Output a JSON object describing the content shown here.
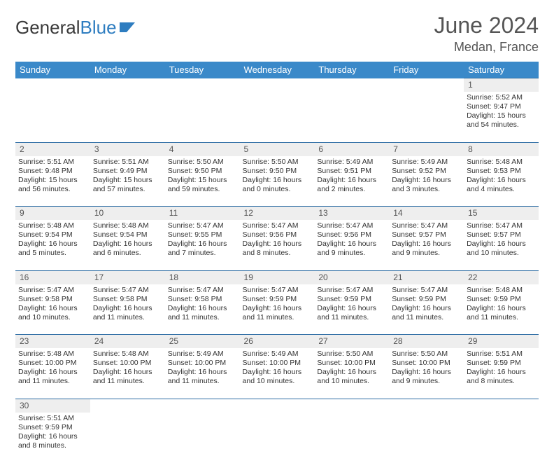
{
  "header": {
    "logo_text1": "General",
    "logo_text2": "Blue",
    "month_title": "June 2024",
    "location": "Medan, France"
  },
  "colors": {
    "header_bg": "#3a89c9",
    "header_text": "#ffffff",
    "daynum_bg": "#eeeeee",
    "divider": "#2e6da4"
  },
  "dayNames": [
    "Sunday",
    "Monday",
    "Tuesday",
    "Wednesday",
    "Thursday",
    "Friday",
    "Saturday"
  ],
  "weeks": [
    {
      "nums": [
        "",
        "",
        "",
        "",
        "",
        "",
        "1"
      ],
      "cells": [
        null,
        null,
        null,
        null,
        null,
        null,
        {
          "sunrise": "Sunrise: 5:52 AM",
          "sunset": "Sunset: 9:47 PM",
          "daylight": "Daylight: 15 hours and 54 minutes."
        }
      ]
    },
    {
      "nums": [
        "2",
        "3",
        "4",
        "5",
        "6",
        "7",
        "8"
      ],
      "cells": [
        {
          "sunrise": "Sunrise: 5:51 AM",
          "sunset": "Sunset: 9:48 PM",
          "daylight": "Daylight: 15 hours and 56 minutes."
        },
        {
          "sunrise": "Sunrise: 5:51 AM",
          "sunset": "Sunset: 9:49 PM",
          "daylight": "Daylight: 15 hours and 57 minutes."
        },
        {
          "sunrise": "Sunrise: 5:50 AM",
          "sunset": "Sunset: 9:50 PM",
          "daylight": "Daylight: 15 hours and 59 minutes."
        },
        {
          "sunrise": "Sunrise: 5:50 AM",
          "sunset": "Sunset: 9:50 PM",
          "daylight": "Daylight: 16 hours and 0 minutes."
        },
        {
          "sunrise": "Sunrise: 5:49 AM",
          "sunset": "Sunset: 9:51 PM",
          "daylight": "Daylight: 16 hours and 2 minutes."
        },
        {
          "sunrise": "Sunrise: 5:49 AM",
          "sunset": "Sunset: 9:52 PM",
          "daylight": "Daylight: 16 hours and 3 minutes."
        },
        {
          "sunrise": "Sunrise: 5:48 AM",
          "sunset": "Sunset: 9:53 PM",
          "daylight": "Daylight: 16 hours and 4 minutes."
        }
      ]
    },
    {
      "nums": [
        "9",
        "10",
        "11",
        "12",
        "13",
        "14",
        "15"
      ],
      "cells": [
        {
          "sunrise": "Sunrise: 5:48 AM",
          "sunset": "Sunset: 9:54 PM",
          "daylight": "Daylight: 16 hours and 5 minutes."
        },
        {
          "sunrise": "Sunrise: 5:48 AM",
          "sunset": "Sunset: 9:54 PM",
          "daylight": "Daylight: 16 hours and 6 minutes."
        },
        {
          "sunrise": "Sunrise: 5:47 AM",
          "sunset": "Sunset: 9:55 PM",
          "daylight": "Daylight: 16 hours and 7 minutes."
        },
        {
          "sunrise": "Sunrise: 5:47 AM",
          "sunset": "Sunset: 9:56 PM",
          "daylight": "Daylight: 16 hours and 8 minutes."
        },
        {
          "sunrise": "Sunrise: 5:47 AM",
          "sunset": "Sunset: 9:56 PM",
          "daylight": "Daylight: 16 hours and 9 minutes."
        },
        {
          "sunrise": "Sunrise: 5:47 AM",
          "sunset": "Sunset: 9:57 PM",
          "daylight": "Daylight: 16 hours and 9 minutes."
        },
        {
          "sunrise": "Sunrise: 5:47 AM",
          "sunset": "Sunset: 9:57 PM",
          "daylight": "Daylight: 16 hours and 10 minutes."
        }
      ]
    },
    {
      "nums": [
        "16",
        "17",
        "18",
        "19",
        "20",
        "21",
        "22"
      ],
      "cells": [
        {
          "sunrise": "Sunrise: 5:47 AM",
          "sunset": "Sunset: 9:58 PM",
          "daylight": "Daylight: 16 hours and 10 minutes."
        },
        {
          "sunrise": "Sunrise: 5:47 AM",
          "sunset": "Sunset: 9:58 PM",
          "daylight": "Daylight: 16 hours and 11 minutes."
        },
        {
          "sunrise": "Sunrise: 5:47 AM",
          "sunset": "Sunset: 9:58 PM",
          "daylight": "Daylight: 16 hours and 11 minutes."
        },
        {
          "sunrise": "Sunrise: 5:47 AM",
          "sunset": "Sunset: 9:59 PM",
          "daylight": "Daylight: 16 hours and 11 minutes."
        },
        {
          "sunrise": "Sunrise: 5:47 AM",
          "sunset": "Sunset: 9:59 PM",
          "daylight": "Daylight: 16 hours and 11 minutes."
        },
        {
          "sunrise": "Sunrise: 5:47 AM",
          "sunset": "Sunset: 9:59 PM",
          "daylight": "Daylight: 16 hours and 11 minutes."
        },
        {
          "sunrise": "Sunrise: 5:48 AM",
          "sunset": "Sunset: 9:59 PM",
          "daylight": "Daylight: 16 hours and 11 minutes."
        }
      ]
    },
    {
      "nums": [
        "23",
        "24",
        "25",
        "26",
        "27",
        "28",
        "29"
      ],
      "cells": [
        {
          "sunrise": "Sunrise: 5:48 AM",
          "sunset": "Sunset: 10:00 PM",
          "daylight": "Daylight: 16 hours and 11 minutes."
        },
        {
          "sunrise": "Sunrise: 5:48 AM",
          "sunset": "Sunset: 10:00 PM",
          "daylight": "Daylight: 16 hours and 11 minutes."
        },
        {
          "sunrise": "Sunrise: 5:49 AM",
          "sunset": "Sunset: 10:00 PM",
          "daylight": "Daylight: 16 hours and 11 minutes."
        },
        {
          "sunrise": "Sunrise: 5:49 AM",
          "sunset": "Sunset: 10:00 PM",
          "daylight": "Daylight: 16 hours and 10 minutes."
        },
        {
          "sunrise": "Sunrise: 5:50 AM",
          "sunset": "Sunset: 10:00 PM",
          "daylight": "Daylight: 16 hours and 10 minutes."
        },
        {
          "sunrise": "Sunrise: 5:50 AM",
          "sunset": "Sunset: 10:00 PM",
          "daylight": "Daylight: 16 hours and 9 minutes."
        },
        {
          "sunrise": "Sunrise: 5:51 AM",
          "sunset": "Sunset: 9:59 PM",
          "daylight": "Daylight: 16 hours and 8 minutes."
        }
      ]
    },
    {
      "nums": [
        "30",
        "",
        "",
        "",
        "",
        "",
        ""
      ],
      "cells": [
        {
          "sunrise": "Sunrise: 5:51 AM",
          "sunset": "Sunset: 9:59 PM",
          "daylight": "Daylight: 16 hours and 8 minutes."
        },
        null,
        null,
        null,
        null,
        null,
        null
      ]
    }
  ]
}
